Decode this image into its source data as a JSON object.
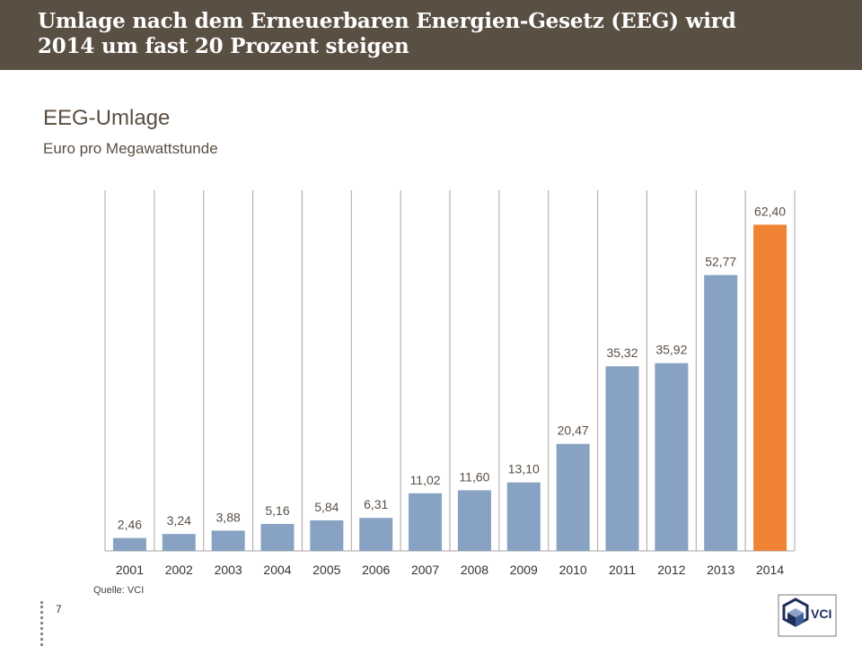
{
  "header": {
    "line1": "Umlage nach dem Erneuerbaren Energien-Gesetz (EEG) wird",
    "line2": "2014 um fast 20 Prozent steigen"
  },
  "chart_data": {
    "type": "bar",
    "title": "EEG-Umlage",
    "subtitle": "Euro pro Megawattstunde",
    "categories": [
      "2001",
      "2002",
      "2003",
      "2004",
      "2005",
      "2006",
      "2007",
      "2008",
      "2009",
      "2010",
      "2011",
      "2012",
      "2013",
      "2014"
    ],
    "values": [
      2.46,
      3.24,
      3.88,
      5.16,
      5.84,
      6.31,
      11.02,
      11.6,
      13.1,
      20.47,
      35.32,
      35.92,
      52.77,
      62.4
    ],
    "labels": [
      "2,46",
      "3,24",
      "3,88",
      "5,16",
      "5,84",
      "6,31",
      "11,02",
      "11,60",
      "13,10",
      "20,47",
      "35,32",
      "35,92",
      "52,77",
      "62,40"
    ],
    "colors": {
      "default": "#87a2c3",
      "highlight": "#ef8233",
      "highlight_category": "2014"
    },
    "grid": "vertical separators",
    "legend": "none"
  },
  "footer": {
    "source": "Quelle:  VCI",
    "page_number": "7",
    "logo_text": "VCI"
  }
}
